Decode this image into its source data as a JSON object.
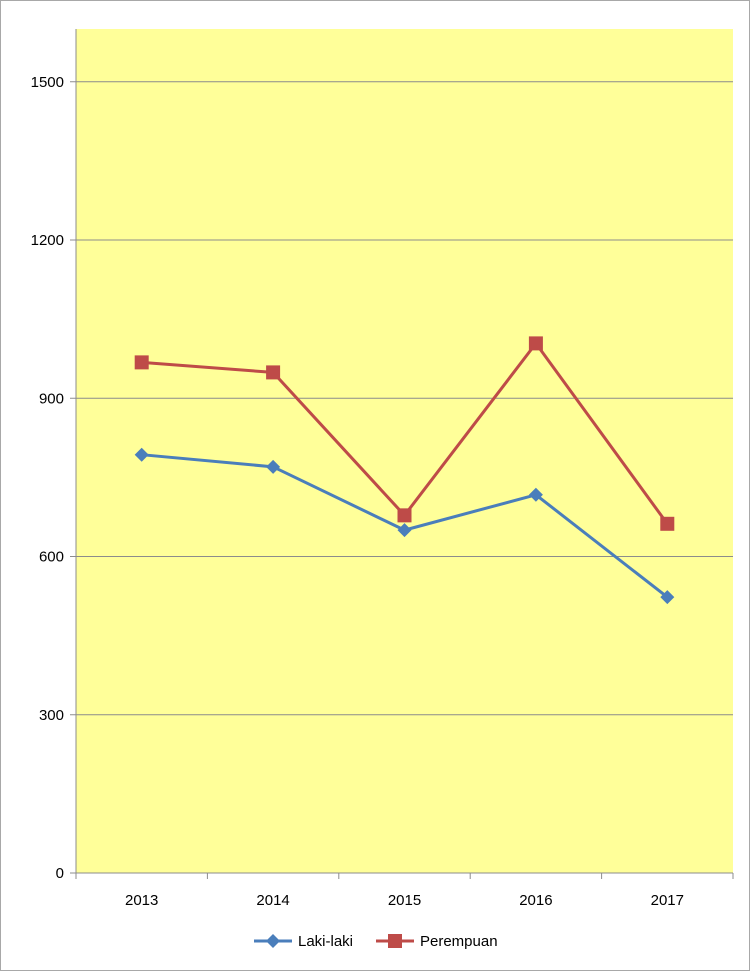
{
  "chart_data": {
    "type": "line",
    "categories": [
      "2013",
      "2014",
      "2015",
      "2016",
      "2017"
    ],
    "series": [
      {
        "name": "Laki-laki",
        "values": [
          793,
          770,
          650,
          717,
          523
        ],
        "color": "#4a7ebb",
        "marker": "diamond"
      },
      {
        "name": "Perempuan",
        "values": [
          968,
          949,
          678,
          1004,
          662
        ],
        "color": "#be4b48",
        "marker": "square"
      }
    ],
    "ylim": [
      0,
      1600
    ],
    "yticks": [
      0,
      300,
      600,
      900,
      1200,
      1500
    ],
    "grid": true,
    "legend": "bottom",
    "title": "",
    "xlabel": "",
    "ylabel": "",
    "colors": {
      "plot_background": "#ffff99",
      "gridline": "#8c8c8c",
      "axis": "#8c8c8c"
    }
  }
}
